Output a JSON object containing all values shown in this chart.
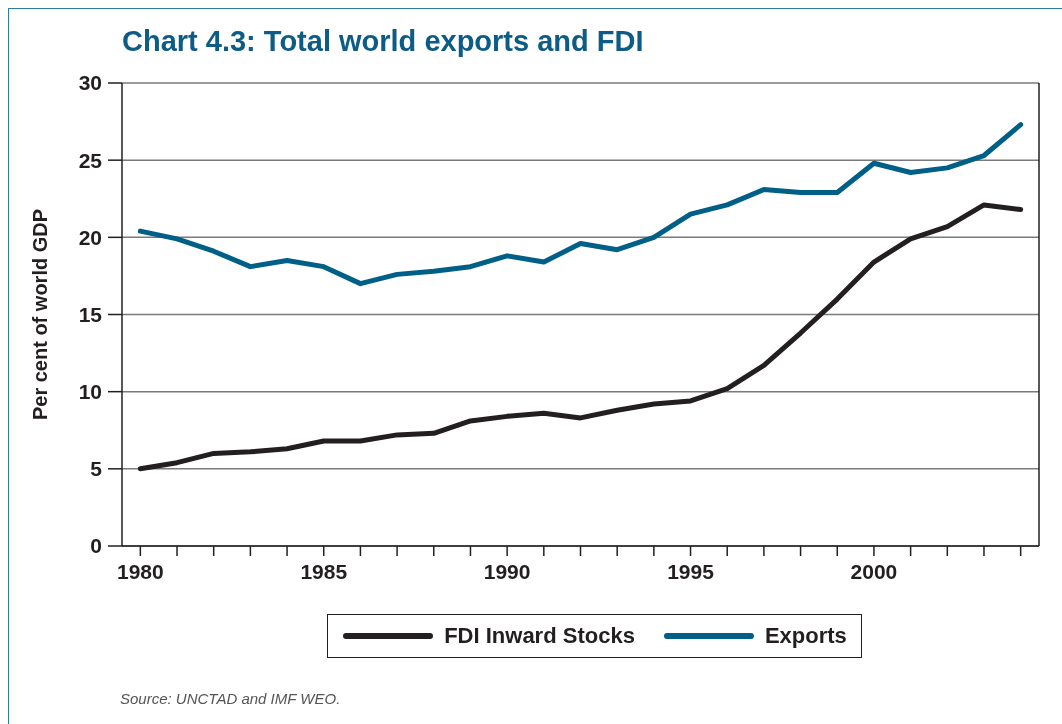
{
  "chart_data": {
    "type": "line",
    "title": "Chart 4.3: Total world exports and FDI",
    "ylabel": "Per cent of world GDP",
    "x": [
      1980,
      1981,
      1982,
      1983,
      1984,
      1985,
      1986,
      1987,
      1988,
      1989,
      1990,
      1991,
      1992,
      1993,
      1994,
      1995,
      1996,
      1997,
      1998,
      1999,
      2000,
      2001,
      2002,
      2003,
      2004
    ],
    "series": [
      {
        "name": "FDI Inward Stocks",
        "color": "#231f20",
        "values": [
          5.0,
          5.4,
          6.0,
          6.1,
          6.3,
          6.8,
          6.8,
          7.2,
          7.3,
          8.1,
          8.4,
          8.6,
          8.3,
          8.8,
          9.2,
          9.4,
          10.2,
          11.7,
          13.8,
          16.0,
          18.4,
          19.9,
          20.7,
          22.1,
          21.8
        ]
      },
      {
        "name": "Exports",
        "color": "#005f87",
        "values": [
          20.4,
          19.9,
          19.1,
          18.1,
          18.5,
          18.1,
          17.0,
          17.6,
          17.8,
          18.1,
          18.8,
          18.4,
          19.6,
          19.2,
          20.0,
          21.5,
          22.1,
          23.1,
          22.9,
          22.9,
          24.8,
          24.2,
          24.5,
          25.3,
          27.3
        ]
      }
    ],
    "xlim": [
      1979.5,
      2004.5
    ],
    "xticks": [
      1980,
      {
        "value": 1981,
        "label": null
      },
      {
        "value": 1982,
        "label": null
      },
      {
        "value": 1983,
        "label": null
      },
      {
        "value": 1984,
        "label": null
      },
      1985,
      {
        "value": 1986,
        "label": null
      },
      {
        "value": 1987,
        "label": null
      },
      {
        "value": 1988,
        "label": null
      },
      {
        "value": 1989,
        "label": null
      },
      1990,
      {
        "value": 1991,
        "label": null
      },
      {
        "value": 1992,
        "label": null
      },
      {
        "value": 1993,
        "label": null
      },
      {
        "value": 1994,
        "label": null
      },
      1995,
      {
        "value": 1996,
        "label": null
      },
      {
        "value": 1997,
        "label": null
      },
      {
        "value": 1998,
        "label": null
      },
      {
        "value": 1999,
        "label": null
      },
      2000,
      {
        "value": 2001,
        "label": null
      },
      {
        "value": 2002,
        "label": null
      },
      {
        "value": 2003,
        "label": null
      },
      {
        "value": 2004,
        "label": null
      }
    ],
    "ylim": [
      0,
      30
    ],
    "yticks": [
      0,
      5,
      10,
      15,
      20,
      25,
      30
    ],
    "grid": "y",
    "legend": "bottom",
    "annotations": [
      "Source: UNCTAD and IMF WEO."
    ]
  }
}
